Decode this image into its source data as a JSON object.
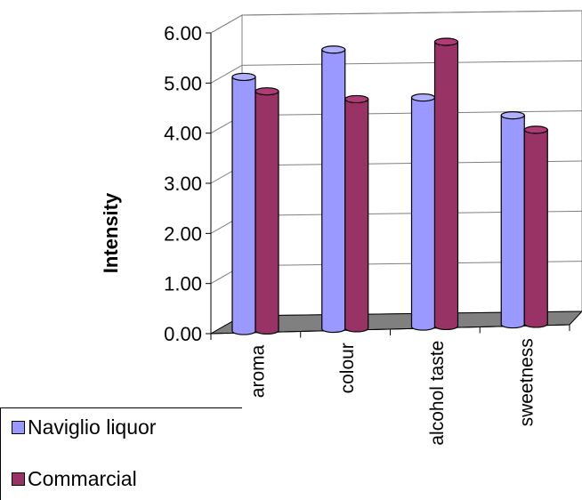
{
  "chart_data": {
    "type": "bar",
    "ylabel": "Intensity",
    "ylim": [
      0,
      6
    ],
    "yticks": [
      "0.00",
      "1.00",
      "2.00",
      "3.00",
      "4.00",
      "5.00",
      "6.00"
    ],
    "categories": [
      "aroma",
      "colour",
      "alcohol taste",
      "sweetness"
    ],
    "series": [
      {
        "name": "Naviglio liquor",
        "values": [
          5.0,
          5.5,
          4.5,
          4.1
        ],
        "color": "#9999ff"
      },
      {
        "name": "Commarcial",
        "values": [
          4.7,
          4.5,
          5.6,
          3.8
        ],
        "color": "#993366"
      }
    ],
    "grid": true,
    "legend_position": "bottom-left"
  }
}
